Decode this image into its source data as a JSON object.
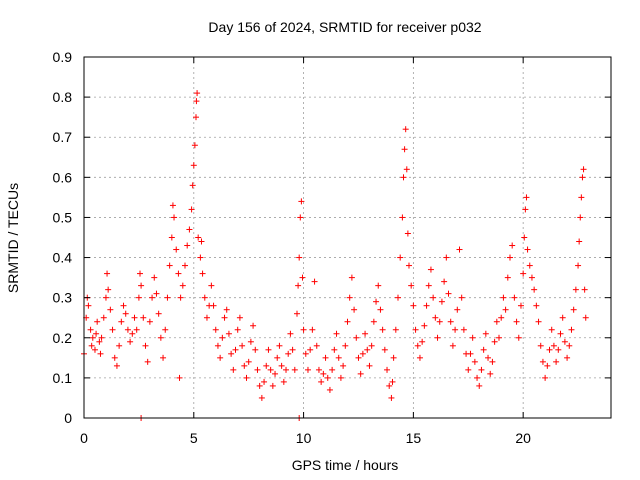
{
  "chart_data": {
    "type": "scatter",
    "title": "Day 156 of 2024, SRMTID for receiver p032",
    "xlabel": "GPS time / hours",
    "ylabel": "SRMTID / TECUs",
    "xlim": [
      0,
      24
    ],
    "ylim": [
      0,
      0.9
    ],
    "xticks": [
      0,
      5,
      10,
      15,
      20
    ],
    "yticks": [
      0,
      0.1,
      0.2,
      0.3,
      0.4,
      0.5,
      0.6,
      0.7,
      0.8,
      0.9
    ],
    "xtick_labels": [
      "0",
      "5",
      "10",
      "15",
      "20"
    ],
    "ytick_labels": [
      "0",
      "0.1",
      "0.2",
      "0.3",
      "0.4",
      "0.5",
      "0.6",
      "0.7",
      "0.8",
      "0.9"
    ],
    "grid": true,
    "marker": "+",
    "color": "#ff0000",
    "series": [
      {
        "name": "SRMTID",
        "points": [
          [
            0.0,
            0.16
          ],
          [
            0.1,
            0.25
          ],
          [
            0.15,
            0.3
          ],
          [
            0.2,
            0.28
          ],
          [
            0.3,
            0.22
          ],
          [
            0.35,
            0.18
          ],
          [
            0.4,
            0.2
          ],
          [
            0.5,
            0.17
          ],
          [
            0.55,
            0.21
          ],
          [
            0.6,
            0.24
          ],
          [
            0.7,
            0.19
          ],
          [
            0.75,
            0.16
          ],
          [
            0.8,
            0.2
          ],
          [
            0.9,
            0.25
          ],
          [
            1.0,
            0.3
          ],
          [
            1.05,
            0.36
          ],
          [
            1.1,
            0.32
          ],
          [
            1.2,
            0.27
          ],
          [
            1.3,
            0.22
          ],
          [
            1.4,
            0.15
          ],
          [
            1.5,
            0.13
          ],
          [
            1.6,
            0.18
          ],
          [
            1.7,
            0.24
          ],
          [
            1.8,
            0.28
          ],
          [
            1.9,
            0.26
          ],
          [
            2.0,
            0.22
          ],
          [
            2.1,
            0.19
          ],
          [
            2.2,
            0.21
          ],
          [
            2.3,
            0.25
          ],
          [
            2.4,
            0.22
          ],
          [
            2.5,
            0.3
          ],
          [
            2.55,
            0.36
          ],
          [
            2.6,
            0.33
          ],
          [
            2.7,
            0.25
          ],
          [
            2.8,
            0.18
          ],
          [
            2.9,
            0.14
          ],
          [
            3.0,
            0.24
          ],
          [
            3.1,
            0.3
          ],
          [
            3.2,
            0.35
          ],
          [
            3.3,
            0.31
          ],
          [
            3.4,
            0.26
          ],
          [
            3.5,
            0.2
          ],
          [
            3.6,
            0.15
          ],
          [
            3.7,
            0.22
          ],
          [
            3.8,
            0.3
          ],
          [
            3.9,
            0.38
          ],
          [
            4.0,
            0.45
          ],
          [
            4.05,
            0.53
          ],
          [
            4.1,
            0.5
          ],
          [
            4.2,
            0.42
          ],
          [
            4.3,
            0.36
          ],
          [
            4.35,
            0.1
          ],
          [
            4.4,
            0.3
          ],
          [
            4.5,
            0.33
          ],
          [
            4.6,
            0.38
          ],
          [
            4.7,
            0.43
          ],
          [
            4.8,
            0.47
          ],
          [
            4.9,
            0.52
          ],
          [
            4.95,
            0.58
          ],
          [
            5.0,
            0.63
          ],
          [
            5.05,
            0.68
          ],
          [
            5.1,
            0.75
          ],
          [
            5.12,
            0.79
          ],
          [
            5.15,
            0.81
          ],
          [
            5.2,
            0.45
          ],
          [
            5.3,
            0.4
          ],
          [
            5.35,
            0.44
          ],
          [
            5.4,
            0.36
          ],
          [
            5.5,
            0.3
          ],
          [
            5.6,
            0.25
          ],
          [
            5.7,
            0.28
          ],
          [
            5.8,
            0.33
          ],
          [
            5.9,
            0.28
          ],
          [
            6.0,
            0.22
          ],
          [
            6.1,
            0.18
          ],
          [
            6.2,
            0.15
          ],
          [
            6.3,
            0.2
          ],
          [
            6.4,
            0.25
          ],
          [
            6.5,
            0.27
          ],
          [
            6.6,
            0.21
          ],
          [
            6.7,
            0.16
          ],
          [
            6.8,
            0.12
          ],
          [
            6.9,
            0.17
          ],
          [
            7.0,
            0.22
          ],
          [
            7.1,
            0.25
          ],
          [
            7.2,
            0.18
          ],
          [
            7.3,
            0.13
          ],
          [
            7.4,
            0.1
          ],
          [
            7.5,
            0.14
          ],
          [
            7.6,
            0.19
          ],
          [
            7.7,
            0.23
          ],
          [
            7.8,
            0.17
          ],
          [
            7.9,
            0.12
          ],
          [
            8.0,
            0.08
          ],
          [
            8.1,
            0.05
          ],
          [
            8.2,
            0.09
          ],
          [
            8.3,
            0.13
          ],
          [
            8.4,
            0.17
          ],
          [
            8.5,
            0.12
          ],
          [
            8.6,
            0.08
          ],
          [
            8.7,
            0.11
          ],
          [
            8.8,
            0.15
          ],
          [
            8.9,
            0.18
          ],
          [
            9.0,
            0.13
          ],
          [
            9.1,
            0.09
          ],
          [
            9.2,
            0.12
          ],
          [
            9.3,
            0.16
          ],
          [
            9.4,
            0.21
          ],
          [
            9.5,
            0.17
          ],
          [
            9.6,
            0.12
          ],
          [
            9.7,
            0.26
          ],
          [
            9.75,
            0.33
          ],
          [
            9.8,
            0.4
          ],
          [
            9.85,
            0.5
          ],
          [
            9.9,
            0.54
          ],
          [
            9.95,
            0.35
          ],
          [
            10.0,
            0.22
          ],
          [
            10.1,
            0.16
          ],
          [
            10.2,
            0.12
          ],
          [
            10.3,
            0.17
          ],
          [
            10.4,
            0.22
          ],
          [
            10.5,
            0.34
          ],
          [
            10.6,
            0.18
          ],
          [
            10.7,
            0.12
          ],
          [
            10.8,
            0.09
          ],
          [
            10.9,
            0.11
          ],
          [
            11.0,
            0.15
          ],
          [
            11.1,
            0.1
          ],
          [
            11.2,
            0.07
          ],
          [
            11.3,
            0.12
          ],
          [
            11.4,
            0.17
          ],
          [
            11.5,
            0.21
          ],
          [
            11.6,
            0.15
          ],
          [
            11.7,
            0.1
          ],
          [
            11.8,
            0.13
          ],
          [
            11.9,
            0.18
          ],
          [
            12.0,
            0.24
          ],
          [
            12.1,
            0.3
          ],
          [
            12.2,
            0.35
          ],
          [
            12.3,
            0.27
          ],
          [
            12.4,
            0.2
          ],
          [
            12.5,
            0.15
          ],
          [
            12.6,
            0.11
          ],
          [
            12.7,
            0.16
          ],
          [
            12.8,
            0.21
          ],
          [
            12.9,
            0.17
          ],
          [
            13.0,
            0.13
          ],
          [
            13.1,
            0.18
          ],
          [
            13.2,
            0.24
          ],
          [
            13.3,
            0.29
          ],
          [
            13.4,
            0.33
          ],
          [
            13.5,
            0.27
          ],
          [
            13.6,
            0.22
          ],
          [
            13.7,
            0.17
          ],
          [
            13.8,
            0.12
          ],
          [
            13.9,
            0.08
          ],
          [
            14.0,
            0.05
          ],
          [
            14.05,
            0.09
          ],
          [
            14.1,
            0.15
          ],
          [
            14.2,
            0.22
          ],
          [
            14.3,
            0.3
          ],
          [
            14.4,
            0.4
          ],
          [
            14.5,
            0.5
          ],
          [
            14.55,
            0.6
          ],
          [
            14.6,
            0.67
          ],
          [
            14.65,
            0.72
          ],
          [
            14.7,
            0.62
          ],
          [
            14.75,
            0.46
          ],
          [
            14.8,
            0.38
          ],
          [
            14.9,
            0.33
          ],
          [
            15.0,
            0.28
          ],
          [
            15.1,
            0.22
          ],
          [
            15.2,
            0.18
          ],
          [
            15.3,
            0.15
          ],
          [
            15.4,
            0.19
          ],
          [
            15.5,
            0.23
          ],
          [
            15.6,
            0.28
          ],
          [
            15.7,
            0.33
          ],
          [
            15.8,
            0.37
          ],
          [
            15.9,
            0.3
          ],
          [
            16.0,
            0.25
          ],
          [
            16.1,
            0.2
          ],
          [
            16.2,
            0.24
          ],
          [
            16.3,
            0.29
          ],
          [
            16.4,
            0.34
          ],
          [
            16.5,
            0.4
          ],
          [
            16.6,
            0.31
          ],
          [
            16.7,
            0.24
          ],
          [
            16.8,
            0.18
          ],
          [
            16.9,
            0.22
          ],
          [
            17.0,
            0.27
          ],
          [
            17.1,
            0.42
          ],
          [
            17.2,
            0.3
          ],
          [
            17.3,
            0.22
          ],
          [
            17.4,
            0.16
          ],
          [
            17.5,
            0.12
          ],
          [
            17.6,
            0.16
          ],
          [
            17.7,
            0.2
          ],
          [
            17.8,
            0.14
          ],
          [
            17.9,
            0.1
          ],
          [
            18.0,
            0.08
          ],
          [
            18.1,
            0.12
          ],
          [
            18.2,
            0.17
          ],
          [
            18.3,
            0.21
          ],
          [
            18.4,
            0.15
          ],
          [
            18.5,
            0.11
          ],
          [
            18.6,
            0.14
          ],
          [
            18.7,
            0.19
          ],
          [
            18.8,
            0.24
          ],
          [
            18.9,
            0.2
          ],
          [
            19.0,
            0.25
          ],
          [
            19.1,
            0.3
          ],
          [
            19.2,
            0.27
          ],
          [
            19.3,
            0.35
          ],
          [
            19.4,
            0.4
          ],
          [
            19.5,
            0.43
          ],
          [
            19.6,
            0.3
          ],
          [
            19.7,
            0.24
          ],
          [
            19.8,
            0.2
          ],
          [
            19.9,
            0.28
          ],
          [
            20.0,
            0.36
          ],
          [
            20.05,
            0.45
          ],
          [
            20.1,
            0.52
          ],
          [
            20.15,
            0.55
          ],
          [
            20.2,
            0.42
          ],
          [
            20.3,
            0.38
          ],
          [
            20.4,
            0.35
          ],
          [
            20.5,
            0.32
          ],
          [
            20.6,
            0.28
          ],
          [
            20.7,
            0.24
          ],
          [
            20.8,
            0.18
          ],
          [
            20.9,
            0.14
          ],
          [
            21.0,
            0.1
          ],
          [
            21.1,
            0.13
          ],
          [
            21.2,
            0.17
          ],
          [
            21.3,
            0.22
          ],
          [
            21.4,
            0.18
          ],
          [
            21.5,
            0.14
          ],
          [
            21.6,
            0.17
          ],
          [
            21.7,
            0.21
          ],
          [
            21.8,
            0.25
          ],
          [
            21.9,
            0.19
          ],
          [
            22.0,
            0.15
          ],
          [
            22.1,
            0.18
          ],
          [
            22.2,
            0.22
          ],
          [
            22.3,
            0.27
          ],
          [
            22.4,
            0.32
          ],
          [
            22.5,
            0.38
          ],
          [
            22.55,
            0.44
          ],
          [
            22.6,
            0.5
          ],
          [
            22.65,
            0.55
          ],
          [
            22.7,
            0.6
          ],
          [
            22.75,
            0.62
          ],
          [
            22.8,
            0.32
          ],
          [
            22.85,
            0.25
          ],
          [
            2.6,
            0.0
          ],
          [
            9.8,
            0.0
          ]
        ]
      }
    ]
  }
}
